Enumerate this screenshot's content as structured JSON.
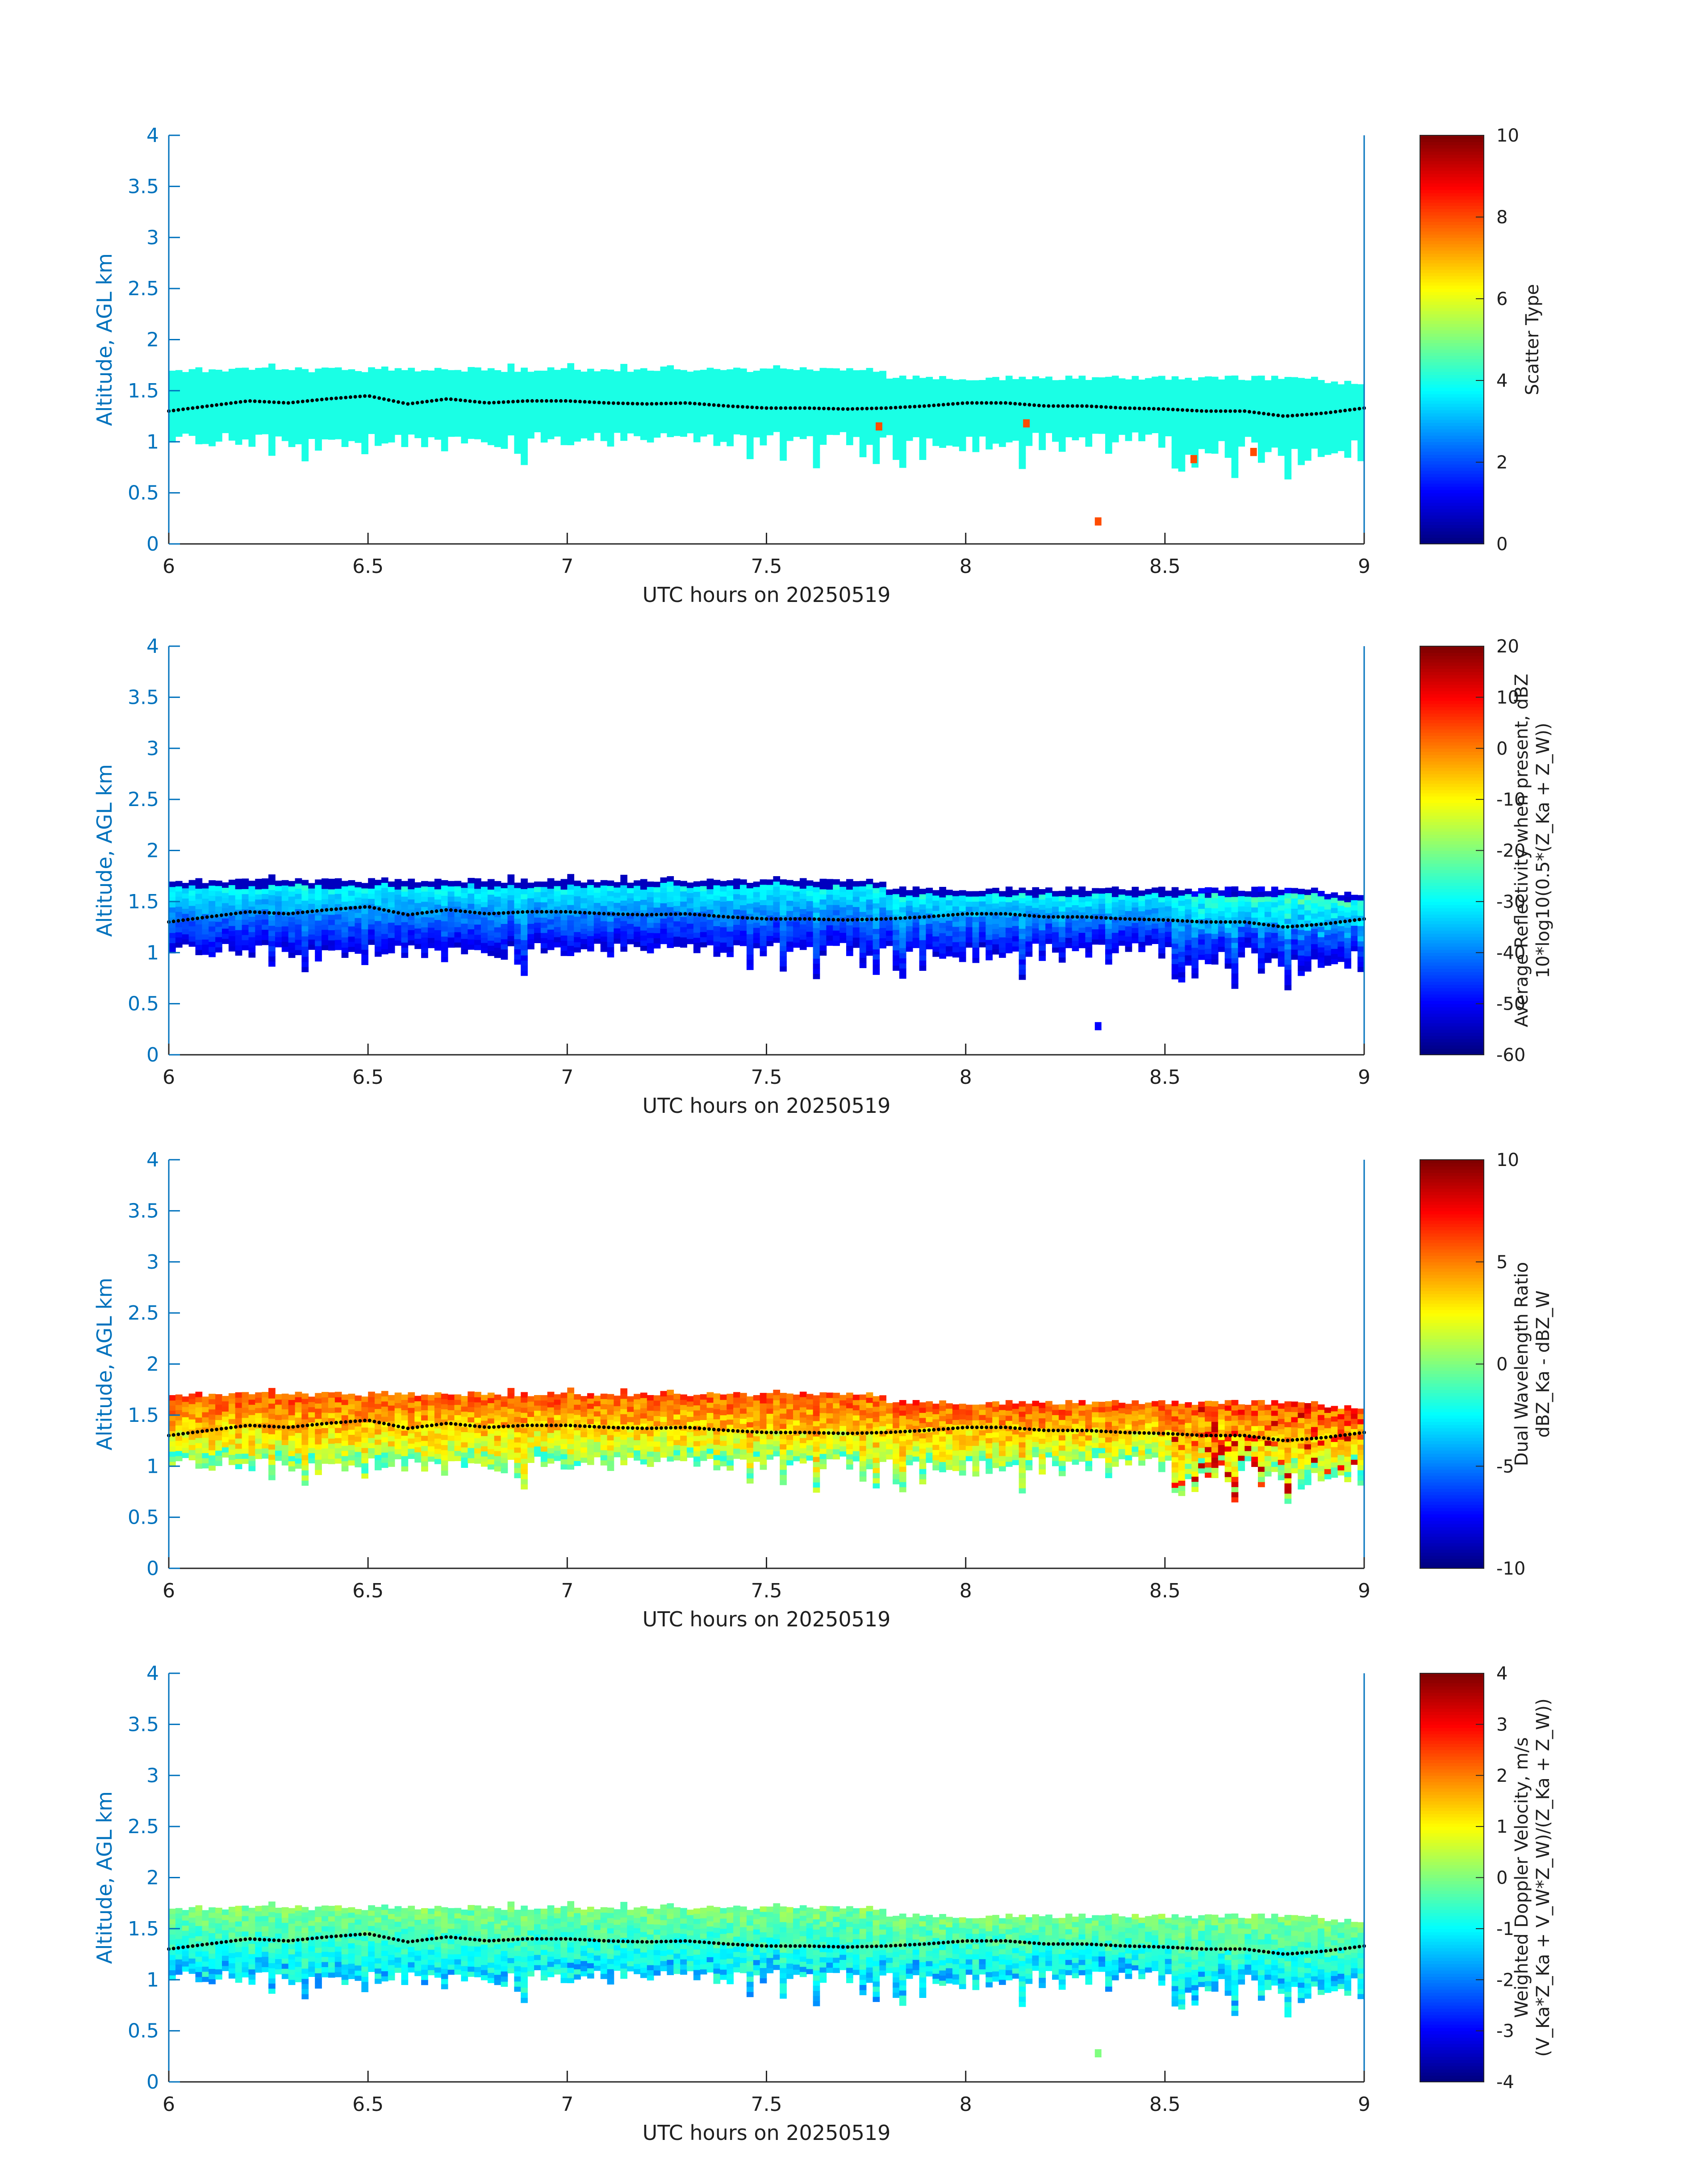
{
  "chart_data": [
    {
      "type": "heatmap",
      "xlabel": "UTC hours on 20250519",
      "ylabel": "Altitude, AGL km",
      "xlim": [
        6,
        9
      ],
      "ylim": [
        0,
        4
      ],
      "xticks": [
        "6",
        "6.5",
        "7",
        "7.5",
        "8",
        "8.5",
        "9"
      ],
      "yticks": [
        "0",
        "0.5",
        "1",
        "1.5",
        "2",
        "2.5",
        "3",
        "3.5",
        "4"
      ],
      "colorbar": {
        "label_lines": [
          "Scatter Type"
        ],
        "range": [
          0,
          10
        ],
        "ticks": [
          "0",
          "2",
          "4",
          "6",
          "8",
          "10"
        ],
        "colormap": "jet"
      },
      "field": "scatter_type",
      "cloud_layer_top_km": 1.6,
      "cloud_layer_base_km": 0.9,
      "dominant_value": 4,
      "isolated_values": [
        {
          "x": 7.78,
          "y": 1.15,
          "value": 8
        },
        {
          "x": 8.15,
          "y": 1.18,
          "value": 8
        },
        {
          "x": 8.33,
          "y": 0.22,
          "value": 8
        },
        {
          "x": 8.57,
          "y": 0.83,
          "value": 8
        },
        {
          "x": 8.72,
          "y": 0.9,
          "value": 8
        }
      ]
    },
    {
      "type": "heatmap",
      "xlabel": "UTC hours on 20250519",
      "ylabel": "Altitude, AGL km",
      "xlim": [
        6,
        9
      ],
      "ylim": [
        0,
        4
      ],
      "xticks": [
        "6",
        "6.5",
        "7",
        "7.5",
        "8",
        "8.5",
        "9"
      ],
      "yticks": [
        "0",
        "0.5",
        "1",
        "1.5",
        "2",
        "2.5",
        "3",
        "3.5",
        "4"
      ],
      "colorbar": {
        "label_lines": [
          "Average Reflectivity when present, dBZ",
          "10*log10(0.5*(Z_Ka + Z_W))"
        ],
        "range": [
          -60,
          20
        ],
        "ticks": [
          "-60",
          "-50",
          "-40",
          "-30",
          "-20",
          "-10",
          "0",
          "10",
          "20"
        ],
        "colormap": "jet"
      },
      "field": "reflectivity",
      "cloud_layer_top_km": 1.6,
      "cloud_layer_base_km": 0.9,
      "value_range_in_cloud": [
        -55,
        -20
      ],
      "isolated_values": [
        {
          "x": 8.33,
          "y": 0.28,
          "value": -50
        }
      ]
    },
    {
      "type": "heatmap",
      "xlabel": "UTC hours on 20250519",
      "ylabel": "Altitude, AGL km",
      "xlim": [
        6,
        9
      ],
      "ylim": [
        0,
        4
      ],
      "xticks": [
        "6",
        "6.5",
        "7",
        "7.5",
        "8",
        "8.5",
        "9"
      ],
      "yticks": [
        "0",
        "0.5",
        "1",
        "1.5",
        "2",
        "2.5",
        "3",
        "3.5",
        "4"
      ],
      "colorbar": {
        "label_lines": [
          "Dual Wavelength Ratio",
          "dBZ_Ka - dBZ_W"
        ],
        "range": [
          -10,
          10
        ],
        "ticks": [
          "-10",
          "-5",
          "0",
          "5",
          "10"
        ],
        "colormap": "jet"
      },
      "field": "dual_wavelength_ratio",
      "cloud_layer_top_km": 1.6,
      "cloud_layer_base_km": 0.9,
      "value_range_in_cloud": [
        -2,
        8
      ]
    },
    {
      "type": "heatmap",
      "xlabel": "UTC hours on 20250519",
      "ylabel": "Altitude, AGL km",
      "xlim": [
        6,
        9
      ],
      "ylim": [
        0,
        4
      ],
      "xticks": [
        "6",
        "6.5",
        "7",
        "7.5",
        "8",
        "8.5",
        "9"
      ],
      "yticks": [
        "0",
        "0.5",
        "1",
        "1.5",
        "2",
        "2.5",
        "3",
        "3.5",
        "4"
      ],
      "colorbar": {
        "label_lines": [
          "Weighted Doppler Velocity, m/s",
          "(V_Ka*Z_Ka + V_W*Z_W)/(Z_Ka + Z_W))"
        ],
        "range": [
          -4,
          4
        ],
        "ticks": [
          "-4",
          "-3",
          "-2",
          "-1",
          "0",
          "1",
          "2",
          "3",
          "4"
        ],
        "colormap": "jet"
      },
      "field": "doppler_velocity",
      "cloud_layer_top_km": 1.6,
      "cloud_layer_base_km": 0.9,
      "value_range_in_cloud": [
        -2,
        1
      ],
      "isolated_values": [
        {
          "x": 8.33,
          "y": 0.28,
          "value": 0
        }
      ]
    }
  ],
  "overlay_line": {
    "style": "dotted",
    "color": "#000000",
    "x": [
      6.0,
      6.1,
      6.2,
      6.3,
      6.4,
      6.5,
      6.6,
      6.7,
      6.8,
      6.9,
      7.0,
      7.1,
      7.2,
      7.3,
      7.4,
      7.5,
      7.6,
      7.7,
      7.8,
      7.9,
      8.0,
      8.1,
      8.2,
      8.3,
      8.4,
      8.5,
      8.6,
      8.7,
      8.8,
      8.9,
      9.0
    ],
    "y": [
      1.3,
      1.35,
      1.4,
      1.38,
      1.42,
      1.45,
      1.37,
      1.42,
      1.38,
      1.4,
      1.4,
      1.38,
      1.37,
      1.38,
      1.35,
      1.33,
      1.33,
      1.32,
      1.33,
      1.35,
      1.38,
      1.38,
      1.35,
      1.35,
      1.33,
      1.32,
      1.3,
      1.3,
      1.25,
      1.28,
      1.33
    ]
  }
}
